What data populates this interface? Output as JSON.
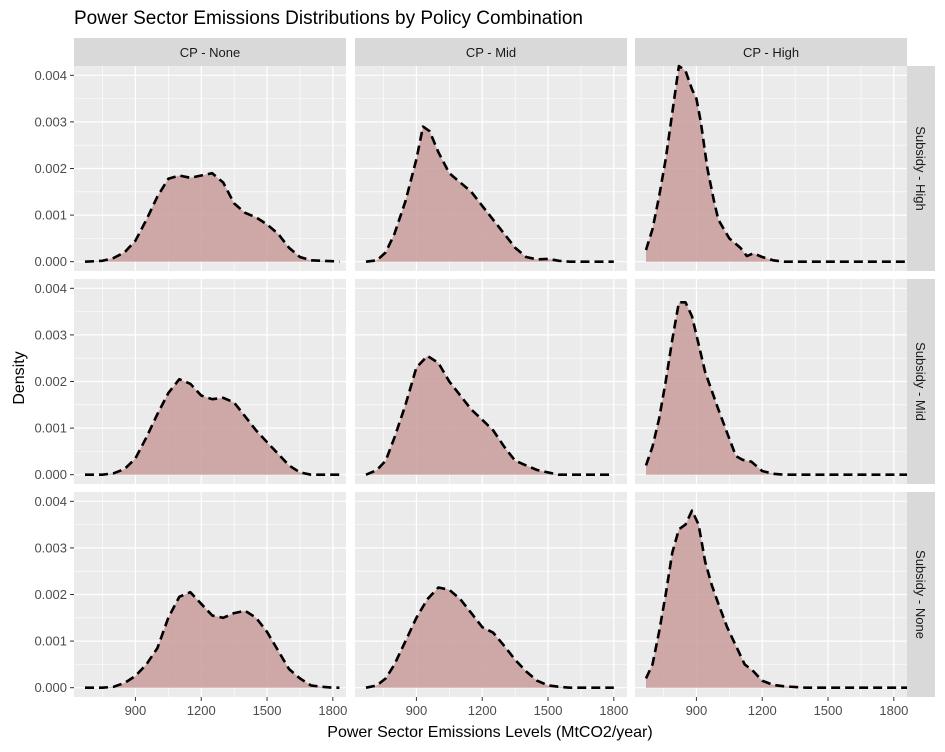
{
  "page": {
    "title": "Power Sector Emissions Distributions by Policy Combination",
    "xlabel": "Power Sector Emissions Levels (MtCO2/year)",
    "ylabel": "Density"
  },
  "colors": {
    "panel_bg": "#ebebeb",
    "strip_bg": "#d9d9d9",
    "grid_major": "#ffffff",
    "fill": "#c99b9b",
    "line": "#000000",
    "text": "#1a1a1a",
    "tick_text": "#4d4d4d"
  },
  "chart_data": {
    "type": "area",
    "facet_cols": [
      "CP - None",
      "CP - Mid",
      "CP - High"
    ],
    "facet_rows": [
      "Subsidy - High",
      "Subsidy - Mid",
      "Subsidy - None"
    ],
    "x_ticks": [
      900,
      1200,
      1500,
      1800
    ],
    "x_tick_labels": [
      "900",
      "1200",
      "1500",
      "1800"
    ],
    "xlim": [
      620,
      1860
    ],
    "y_ticks": [
      0.0,
      0.001,
      0.002,
      0.003,
      0.004
    ],
    "y_tick_labels": [
      "0.000",
      "0.001",
      "0.002",
      "0.003",
      "0.004"
    ],
    "ylim": [
      -0.0002,
      0.0042
    ],
    "grid": true,
    "line_style": "dashed",
    "panels": [
      {
        "row": "Subsidy - High",
        "col": "CP - None",
        "x": [
          670,
          750,
          800,
          850,
          900,
          950,
          1000,
          1050,
          1100,
          1150,
          1200,
          1250,
          1300,
          1350,
          1400,
          1450,
          1500,
          1550,
          1600,
          1650,
          1700,
          1750,
          1800,
          1830
        ],
        "y": [
          0.0,
          2e-05,
          8e-05,
          0.0002,
          0.00045,
          0.0009,
          0.0014,
          0.00178,
          0.00185,
          0.0018,
          0.00185,
          0.0019,
          0.0017,
          0.00125,
          0.00105,
          0.00095,
          0.0008,
          0.0006,
          0.0003,
          0.0001,
          3e-05,
          2e-05,
          1e-05,
          0.0
        ]
      },
      {
        "row": "Subsidy - High",
        "col": "CP - Mid",
        "x": [
          670,
          720,
          760,
          800,
          850,
          900,
          930,
          960,
          1000,
          1050,
          1100,
          1150,
          1200,
          1250,
          1300,
          1350,
          1400,
          1450,
          1500,
          1550,
          1600,
          1650,
          1700,
          1800
        ],
        "y": [
          0.0,
          3e-05,
          0.0002,
          0.0006,
          0.0013,
          0.0022,
          0.0029,
          0.0028,
          0.00235,
          0.0019,
          0.0017,
          0.0015,
          0.0012,
          0.0009,
          0.0006,
          0.0003,
          0.0001,
          5e-05,
          6e-05,
          2e-05,
          0.0,
          0.0,
          0.0,
          0.0
        ]
      },
      {
        "row": "Subsidy - High",
        "col": "CP - High",
        "x": [
          670,
          700,
          730,
          760,
          790,
          820,
          850,
          880,
          900,
          920,
          950,
          980,
          1000,
          1050,
          1100,
          1130,
          1160,
          1200,
          1250,
          1300,
          1400,
          1500,
          1600,
          1700,
          1800,
          1860
        ],
        "y": [
          0.00025,
          0.0007,
          0.0014,
          0.0022,
          0.0032,
          0.0042,
          0.0041,
          0.0037,
          0.0035,
          0.003,
          0.002,
          0.0013,
          0.0009,
          0.0005,
          0.0003,
          0.00012,
          0.00018,
          0.0001,
          3e-05,
          0.0,
          0.0,
          0.0,
          0.0,
          0.0,
          0.0,
          0.0
        ]
      },
      {
        "row": "Subsidy - Mid",
        "col": "CP - None",
        "x": [
          670,
          750,
          800,
          850,
          900,
          950,
          1000,
          1050,
          1100,
          1150,
          1200,
          1250,
          1300,
          1350,
          1400,
          1450,
          1500,
          1550,
          1600,
          1650,
          1700,
          1750,
          1800,
          1830
        ],
        "y": [
          0.0,
          0.0,
          3e-05,
          0.00012,
          0.00035,
          0.0008,
          0.0013,
          0.00175,
          0.00205,
          0.00195,
          0.0017,
          0.00162,
          0.00165,
          0.00155,
          0.00125,
          0.00095,
          0.0007,
          0.00045,
          0.0002,
          5e-05,
          0.0,
          0.0,
          0.0,
          0.0
        ]
      },
      {
        "row": "Subsidy - Mid",
        "col": "CP - Mid",
        "x": [
          670,
          720,
          760,
          800,
          850,
          900,
          950,
          1000,
          1050,
          1100,
          1150,
          1200,
          1250,
          1300,
          1350,
          1400,
          1450,
          1500,
          1550,
          1600,
          1650,
          1700,
          1800
        ],
        "y": [
          0.0,
          0.0001,
          0.0003,
          0.0008,
          0.0015,
          0.0023,
          0.00255,
          0.0024,
          0.002,
          0.0017,
          0.0014,
          0.00118,
          0.00095,
          0.0006,
          0.0003,
          0.0002,
          0.0001,
          5e-05,
          0.0,
          0.0,
          0.0,
          0.0,
          0.0
        ]
      },
      {
        "row": "Subsidy - Mid",
        "col": "CP - High",
        "x": [
          670,
          700,
          730,
          760,
          790,
          820,
          850,
          880,
          910,
          940,
          970,
          1000,
          1040,
          1080,
          1110,
          1150,
          1200,
          1250,
          1300,
          1400,
          1500,
          1600,
          1700,
          1800,
          1860
        ],
        "y": [
          0.0002,
          0.0006,
          0.0012,
          0.002,
          0.0029,
          0.0037,
          0.0037,
          0.0034,
          0.0028,
          0.0022,
          0.0018,
          0.0014,
          0.0009,
          0.0004,
          0.00032,
          0.00028,
          8e-05,
          2e-05,
          0.0,
          0.0,
          0.0,
          0.0,
          0.0,
          0.0,
          0.0
        ]
      },
      {
        "row": "Subsidy - None",
        "col": "CP - None",
        "x": [
          670,
          750,
          800,
          850,
          900,
          950,
          1000,
          1050,
          1100,
          1150,
          1200,
          1250,
          1300,
          1350,
          1400,
          1450,
          1500,
          1550,
          1600,
          1650,
          1700,
          1750,
          1800,
          1830
        ],
        "y": [
          0.0,
          0.0,
          2e-05,
          0.0001,
          0.00025,
          0.0005,
          0.00085,
          0.0015,
          0.00195,
          0.00205,
          0.0018,
          0.00155,
          0.0015,
          0.0016,
          0.00165,
          0.0015,
          0.0012,
          0.0008,
          0.0004,
          0.0002,
          5e-05,
          2e-05,
          0.0,
          0.0
        ]
      },
      {
        "row": "Subsidy - None",
        "col": "CP - Mid",
        "x": [
          670,
          720,
          760,
          800,
          850,
          900,
          950,
          1000,
          1050,
          1100,
          1150,
          1200,
          1250,
          1300,
          1350,
          1400,
          1450,
          1500,
          1550,
          1600,
          1650,
          1700,
          1800
        ],
        "y": [
          0.0,
          5e-05,
          0.0002,
          0.0005,
          0.001,
          0.0015,
          0.0019,
          0.00215,
          0.0021,
          0.0019,
          0.0016,
          0.0013,
          0.00118,
          0.0009,
          0.0006,
          0.00035,
          0.00015,
          5e-05,
          2e-05,
          0.0,
          0.0,
          0.0,
          0.0
        ]
      },
      {
        "row": "Subsidy - None",
        "col": "CP - High",
        "x": [
          670,
          700,
          730,
          760,
          790,
          820,
          850,
          880,
          910,
          940,
          970,
          1000,
          1040,
          1080,
          1120,
          1160,
          1200,
          1250,
          1300,
          1400,
          1500,
          1600,
          1700,
          1800,
          1860
        ],
        "y": [
          0.0002,
          0.0005,
          0.0012,
          0.002,
          0.0029,
          0.0034,
          0.0035,
          0.0038,
          0.0035,
          0.0027,
          0.0022,
          0.0018,
          0.0013,
          0.0009,
          0.0005,
          0.00035,
          0.00015,
          6e-05,
          3e-05,
          0.0,
          0.0,
          0.0,
          0.0,
          0.0,
          0.0
        ]
      }
    ]
  }
}
